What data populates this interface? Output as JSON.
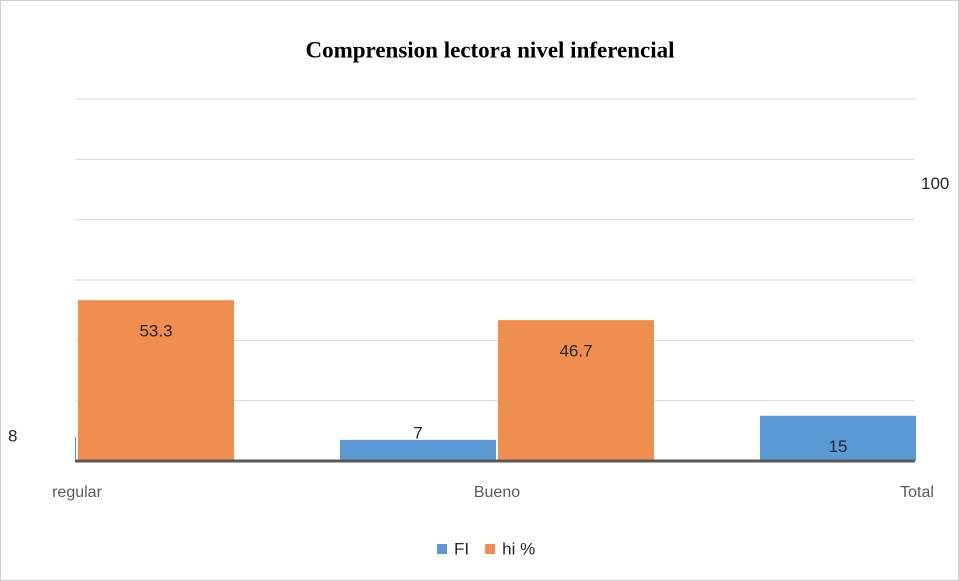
{
  "chart_data": {
    "type": "bar",
    "title": "Comprension lectora nivel inferencial",
    "categories": [
      "regular",
      "Bueno",
      "Total"
    ],
    "series": [
      {
        "name": "FI",
        "color": "#5b9bd5",
        "values": [
          8,
          7,
          15
        ]
      },
      {
        "name": "hi %",
        "color": "#ef8e4f",
        "values": [
          53.3,
          46.7,
          100
        ]
      }
    ],
    "ylim": [
      0,
      120
    ],
    "yticks": [
      0,
      20,
      40,
      60,
      80,
      100,
      120
    ],
    "grid": true,
    "legend": "bottom"
  }
}
